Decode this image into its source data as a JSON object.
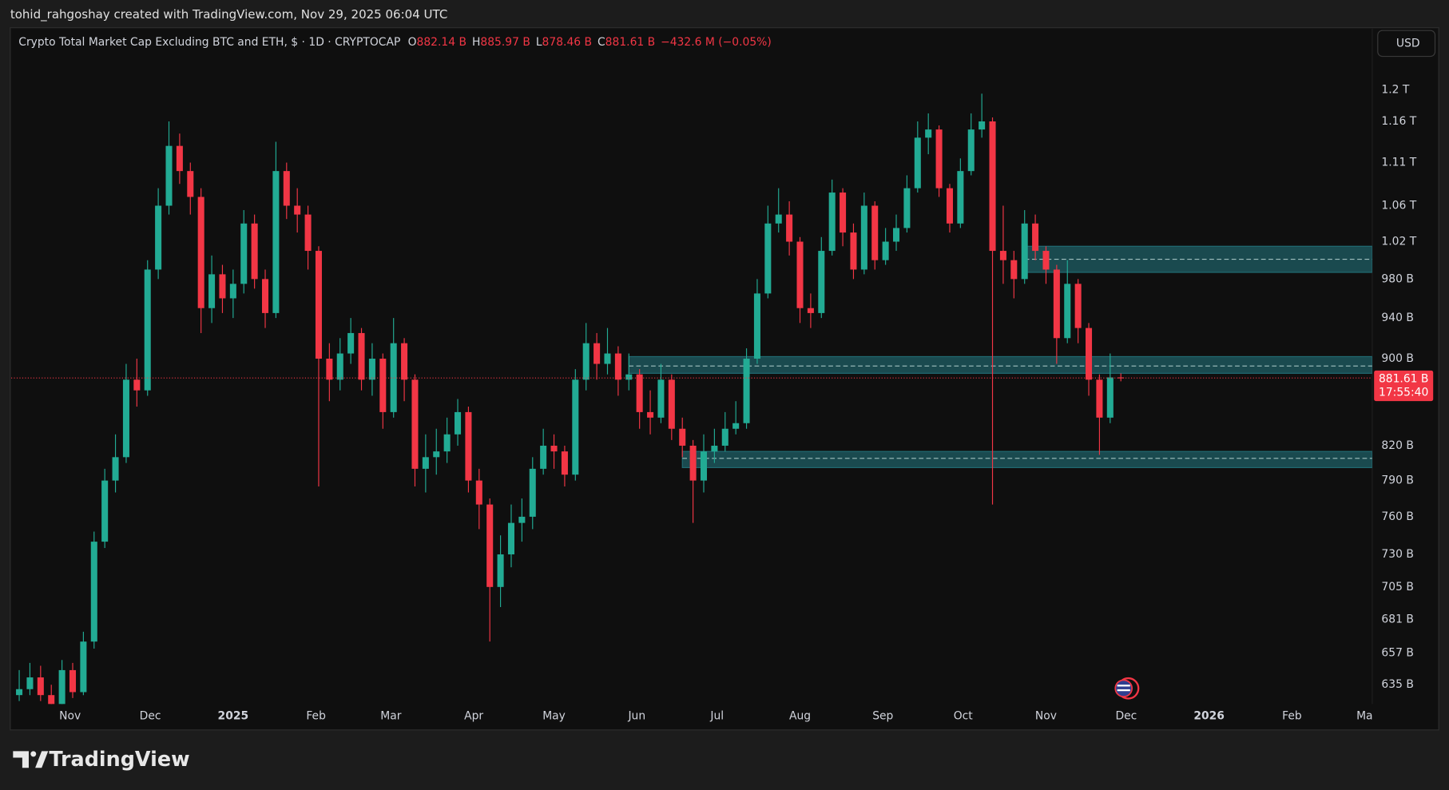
{
  "chart_data": {
    "type": "candlestick",
    "attribution": "tohid_rahgoshay created with TradingView.com, Nov 29, 2025 06:04 UTC",
    "title": "Crypto Total Market Cap Excluding BTC and ETH, $ · 1D · CRYPTOCAP",
    "ohlc_header": [
      {
        "label": "O",
        "value": "882.14 B"
      },
      {
        "label": "H",
        "value": "885.97 B"
      },
      {
        "label": "L",
        "value": "878.46 B"
      },
      {
        "label": "C",
        "value": "881.61 B"
      }
    ],
    "change": "−432.6 M (−0.05%)",
    "currency": "USD",
    "brand": "TradingView",
    "last_price_label": "881.61 B",
    "countdown": "17:55:40",
    "log_scale": true,
    "grid": false,
    "up_color": "#22ab94",
    "down_color": "#f23645",
    "zone_color": "#22727a",
    "xlim": [
      "2024-10-10",
      "2026-03-03"
    ],
    "ylim": [
      622,
      1281
    ],
    "xticks": [
      {
        "value": "2024-11-01",
        "label": "Nov"
      },
      {
        "value": "2024-12-01",
        "label": "Dec"
      },
      {
        "value": "2025-01-01",
        "label": "2025"
      },
      {
        "value": "2025-02-01",
        "label": "Feb"
      },
      {
        "value": "2025-03-01",
        "label": "Mar"
      },
      {
        "value": "2025-04-01",
        "label": "Apr"
      },
      {
        "value": "2025-05-01",
        "label": "May"
      },
      {
        "value": "2025-06-01",
        "label": "Jun"
      },
      {
        "value": "2025-07-01",
        "label": "Jul"
      },
      {
        "value": "2025-08-01",
        "label": "Aug"
      },
      {
        "value": "2025-09-01",
        "label": "Sep"
      },
      {
        "value": "2025-10-01",
        "label": "Oct"
      },
      {
        "value": "2025-11-01",
        "label": "Nov"
      },
      {
        "value": "2025-12-01",
        "label": "Dec"
      },
      {
        "value": "2026-01-01",
        "label": "2026"
      },
      {
        "value": "2026-02-01",
        "label": "Feb"
      },
      {
        "value": "2026-03-01",
        "label": "Mar"
      }
    ],
    "yticks": [
      {
        "value": 1200,
        "label": "1.2 T"
      },
      {
        "value": 1160,
        "label": "1.16 T"
      },
      {
        "value": 1110,
        "label": "1.11 T"
      },
      {
        "value": 1060,
        "label": "1.06 T"
      },
      {
        "value": 1020,
        "label": "1.02 T"
      },
      {
        "value": 980,
        "label": "980 B"
      },
      {
        "value": 940,
        "label": "940 B"
      },
      {
        "value": 900,
        "label": "900 B"
      },
      {
        "value": 820,
        "label": "820 B"
      },
      {
        "value": 790,
        "label": "790 B"
      },
      {
        "value": 760,
        "label": "760 B"
      },
      {
        "value": 730,
        "label": "730 B"
      },
      {
        "value": 705,
        "label": "705 B"
      },
      {
        "value": 681,
        "label": "681 B"
      },
      {
        "value": 657,
        "label": "657 B"
      },
      {
        "value": 635,
        "label": "635 B"
      }
    ],
    "zones": [
      {
        "start": "2025-10-24",
        "top": 1015,
        "mid": 1001,
        "bottom": 987
      },
      {
        "start": "2025-05-29",
        "top": 902,
        "mid": 893,
        "bottom": 886
      },
      {
        "start": "2025-06-18",
        "top": 815,
        "mid": 809,
        "bottom": 801
      }
    ],
    "x": [
      "2024-10-13",
      "2024-10-17",
      "2024-10-21",
      "2024-10-25",
      "2024-10-29",
      "2024-11-02",
      "2024-11-06",
      "2024-11-10",
      "2024-11-14",
      "2024-11-18",
      "2024-11-22",
      "2024-11-26",
      "2024-11-30",
      "2024-12-04",
      "2024-12-08",
      "2024-12-12",
      "2024-12-16",
      "2024-12-20",
      "2024-12-24",
      "2024-12-28",
      "2025-01-01",
      "2025-01-05",
      "2025-01-09",
      "2025-01-13",
      "2025-01-17",
      "2025-01-21",
      "2025-01-25",
      "2025-01-29",
      "2025-02-02",
      "2025-02-06",
      "2025-02-10",
      "2025-02-14",
      "2025-02-18",
      "2025-02-22",
      "2025-02-26",
      "2025-03-02",
      "2025-03-06",
      "2025-03-10",
      "2025-03-14",
      "2025-03-18",
      "2025-03-22",
      "2025-03-26",
      "2025-03-30",
      "2025-04-03",
      "2025-04-07",
      "2025-04-11",
      "2025-04-15",
      "2025-04-19",
      "2025-04-23",
      "2025-04-27",
      "2025-05-01",
      "2025-05-05",
      "2025-05-09",
      "2025-05-13",
      "2025-05-17",
      "2025-05-21",
      "2025-05-25",
      "2025-05-29",
      "2025-06-02",
      "2025-06-06",
      "2025-06-10",
      "2025-06-14",
      "2025-06-18",
      "2025-06-22",
      "2025-06-26",
      "2025-06-30",
      "2025-07-04",
      "2025-07-08",
      "2025-07-12",
      "2025-07-16",
      "2025-07-20",
      "2025-07-24",
      "2025-07-28",
      "2025-08-01",
      "2025-08-05",
      "2025-08-09",
      "2025-08-13",
      "2025-08-17",
      "2025-08-21",
      "2025-08-25",
      "2025-08-29",
      "2025-09-02",
      "2025-09-06",
      "2025-09-10",
      "2025-09-14",
      "2025-09-18",
      "2025-09-22",
      "2025-09-26",
      "2025-09-30",
      "2025-10-04",
      "2025-10-08",
      "2025-10-12",
      "2025-10-16",
      "2025-10-20",
      "2025-10-24",
      "2025-10-28",
      "2025-11-01",
      "2025-11-05",
      "2025-11-09",
      "2025-11-13",
      "2025-11-17",
      "2025-11-21",
      "2025-11-25",
      "2025-11-29"
    ],
    "open": [
      628,
      632,
      640,
      628,
      622,
      645,
      630,
      665,
      740,
      790,
      810,
      880,
      870,
      990,
      1060,
      1130,
      1100,
      1070,
      950,
      985,
      960,
      975,
      1040,
      980,
      945,
      1100,
      1060,
      1050,
      1010,
      900,
      880,
      905,
      925,
      880,
      900,
      850,
      915,
      880,
      800,
      810,
      815,
      830,
      850,
      790,
      770,
      705,
      730,
      755,
      760,
      800,
      820,
      815,
      795,
      880,
      915,
      895,
      905,
      880,
      885,
      850,
      845,
      880,
      835,
      820,
      790,
      815,
      820,
      835,
      840,
      900,
      965,
      1040,
      1050,
      1020,
      950,
      945,
      1010,
      1075,
      1030,
      990,
      1060,
      1000,
      1020,
      1035,
      1080,
      1140,
      1150,
      1080,
      1040,
      1100,
      1150,
      1160,
      1010,
      1000,
      980,
      1040,
      1010,
      990,
      920,
      975,
      930,
      880,
      845,
      882.14
    ],
    "high": [
      645,
      650,
      648,
      635,
      652,
      650,
      672,
      748,
      800,
      830,
      895,
      900,
      1000,
      1080,
      1160,
      1145,
      1110,
      1080,
      1005,
      995,
      990,
      1055,
      1050,
      990,
      1135,
      1110,
      1080,
      1060,
      1015,
      915,
      920,
      940,
      930,
      915,
      905,
      940,
      920,
      885,
      830,
      835,
      845,
      862,
      855,
      800,
      775,
      745,
      770,
      775,
      810,
      835,
      830,
      820,
      890,
      935,
      925,
      930,
      912,
      905,
      890,
      870,
      895,
      885,
      845,
      825,
      830,
      835,
      850,
      860,
      910,
      980,
      1060,
      1080,
      1065,
      1025,
      965,
      1025,
      1090,
      1080,
      1040,
      1075,
      1065,
      1035,
      1050,
      1095,
      1160,
      1170,
      1155,
      1085,
      1115,
      1170,
      1195,
      1165,
      1060,
      1010,
      1055,
      1050,
      1015,
      995,
      1000,
      980,
      935,
      885,
      905,
      885.97
    ],
    "low": [
      624,
      628,
      624,
      618,
      620,
      626,
      628,
      660,
      735,
      780,
      805,
      855,
      865,
      980,
      1050,
      1085,
      1050,
      925,
      935,
      945,
      940,
      965,
      970,
      930,
      940,
      1045,
      1030,
      990,
      785,
      860,
      870,
      895,
      870,
      865,
      835,
      845,
      860,
      785,
      780,
      795,
      805,
      820,
      780,
      750,
      665,
      690,
      720,
      740,
      750,
      795,
      800,
      785,
      790,
      870,
      880,
      885,
      865,
      870,
      835,
      830,
      840,
      825,
      810,
      755,
      780,
      805,
      815,
      830,
      835,
      895,
      960,
      1030,
      1005,
      935,
      930,
      940,
      1005,
      1015,
      980,
      985,
      990,
      995,
      1010,
      1030,
      1075,
      1120,
      1070,
      1030,
      1035,
      1095,
      1140,
      770,
      975,
      960,
      975,
      1000,
      975,
      895,
      915,
      915,
      865,
      812,
      840,
      878.46
    ],
    "close": [
      632,
      640,
      628,
      622,
      645,
      630,
      665,
      740,
      790,
      810,
      880,
      870,
      990,
      1060,
      1130,
      1100,
      1070,
      950,
      985,
      960,
      975,
      1040,
      980,
      945,
      1100,
      1060,
      1050,
      1010,
      900,
      880,
      905,
      925,
      880,
      900,
      850,
      915,
      880,
      800,
      810,
      815,
      830,
      850,
      790,
      770,
      705,
      730,
      755,
      760,
      800,
      820,
      815,
      795,
      880,
      915,
      895,
      905,
      880,
      885,
      850,
      845,
      880,
      835,
      820,
      790,
      815,
      820,
      835,
      840,
      900,
      965,
      1040,
      1050,
      1020,
      950,
      945,
      1010,
      1075,
      1030,
      990,
      1060,
      1000,
      1020,
      1035,
      1080,
      1140,
      1150,
      1080,
      1040,
      1100,
      1150,
      1160,
      1010,
      1000,
      980,
      1040,
      1010,
      990,
      920,
      975,
      930,
      880,
      845,
      882.14,
      881.61
    ]
  }
}
